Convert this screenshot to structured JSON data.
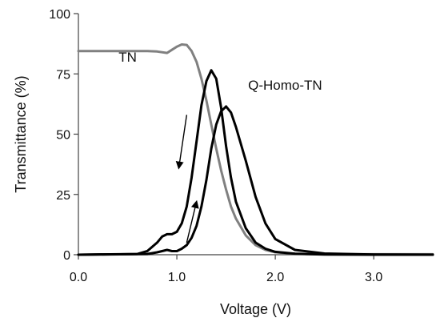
{
  "chart_data": {
    "type": "line",
    "title": "",
    "xlabel": "Voltage (V)",
    "ylabel": "Transmittance (%)",
    "xlim": [
      0,
      3.6
    ],
    "ylim": [
      0,
      100
    ],
    "xticks": [
      0,
      1,
      2,
      3
    ],
    "xtick_labels": [
      "0.0",
      "1.0",
      "2.0",
      "3.0"
    ],
    "yticks": [
      0,
      25,
      50,
      75,
      100
    ],
    "ytick_labels": [
      "0",
      "25",
      "50",
      "75",
      "100"
    ],
    "grid": false,
    "legend": "none",
    "series": [
      {
        "name": "TN",
        "color": "#808080",
        "x": [
          0.0,
          0.5,
          0.7,
          0.8,
          0.9,
          0.95,
          1.0,
          1.05,
          1.1,
          1.15,
          1.2,
          1.25,
          1.3,
          1.35,
          1.4,
          1.45,
          1.5,
          1.55,
          1.6,
          1.7,
          1.8,
          1.9,
          2.0,
          2.2,
          2.5,
          3.0,
          3.6
        ],
        "y": [
          84.5,
          84.5,
          84.5,
          84.3,
          83.7,
          85.0,
          86.3,
          87.2,
          87.0,
          84.5,
          80.0,
          73.0,
          64.0,
          54.0,
          44.0,
          35.0,
          27.0,
          20.0,
          15.0,
          8.0,
          4.0,
          2.0,
          1.0,
          0.4,
          0.2,
          0.2,
          0.2
        ]
      },
      {
        "name": "Q-Homo-TN",
        "color": "#000000",
        "x": [
          0.0,
          0.6,
          0.7,
          0.8,
          0.85,
          0.9,
          0.95,
          1.0,
          1.05,
          1.1,
          1.15,
          1.2,
          1.25,
          1.3,
          1.35,
          1.4,
          1.45,
          1.5,
          1.55,
          1.6,
          1.7,
          1.8,
          1.9,
          2.0,
          2.2,
          2.5,
          3.0,
          3.6
        ],
        "y": [
          0.0,
          0.3,
          1.5,
          5.0,
          7.5,
          8.5,
          8.5,
          9.5,
          13.0,
          20.0,
          32.0,
          47.0,
          62.0,
          72.0,
          76.5,
          73.0,
          61.0,
          45.0,
          32.0,
          22.0,
          11.0,
          5.0,
          2.5,
          1.2,
          0.4,
          0.1,
          0.0,
          0.0
        ]
      },
      {
        "name": "",
        "color": "#000000",
        "x": [
          0.0,
          0.7,
          0.8,
          0.85,
          0.9,
          0.95,
          1.0,
          1.05,
          1.1,
          1.15,
          1.2,
          1.25,
          1.3,
          1.35,
          1.4,
          1.45,
          1.5,
          1.55,
          1.6,
          1.7,
          1.8,
          1.9,
          2.0,
          2.2,
          2.5,
          3.0,
          3.6
        ],
        "y": [
          0.0,
          0.3,
          1.0,
          1.5,
          2.0,
          1.5,
          1.5,
          2.5,
          4.0,
          7.0,
          12.0,
          20.0,
          31.0,
          44.0,
          54.0,
          59.5,
          61.5,
          59.0,
          53.0,
          39.0,
          24.0,
          13.0,
          6.5,
          2.0,
          0.5,
          0.1,
          0.0
        ]
      }
    ],
    "annotations": [
      {
        "text": "TN",
        "x": 0.5,
        "y": 80
      },
      {
        "text": "Q-Homo-TN",
        "x": 2.1,
        "y": 68.5
      }
    ],
    "arrows": [
      {
        "direction": "down",
        "from": [
          1.1,
          58
        ],
        "to": [
          1.02,
          36
        ]
      },
      {
        "direction": "up",
        "from": [
          1.1,
          5
        ],
        "to": [
          1.2,
          22
        ]
      }
    ]
  }
}
